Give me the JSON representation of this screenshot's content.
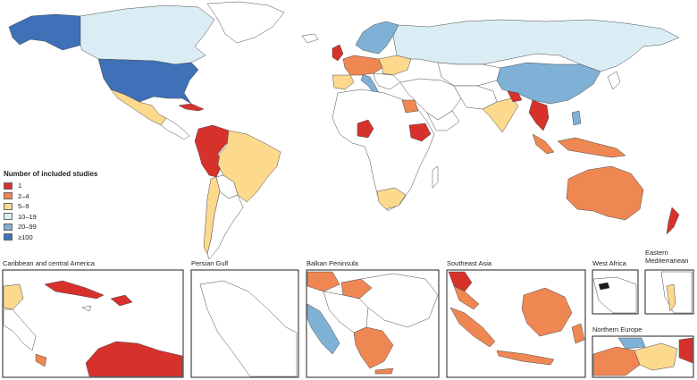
{
  "legend": {
    "title": "Number of included studies",
    "items": [
      {
        "label": "1",
        "color": "#d7312c"
      },
      {
        "label": "2–4",
        "color": "#ef8753"
      },
      {
        "label": "5–9",
        "color": "#fdd98e"
      },
      {
        "label": "10–19",
        "color": "#dbedf4"
      },
      {
        "label": "20–99",
        "color": "#7fb1d7"
      },
      {
        "label": "≥100",
        "color": "#3e71b7"
      }
    ]
  },
  "insets": [
    {
      "title": "Caribbean and central America"
    },
    {
      "title": "Persian Gulf"
    },
    {
      "title": "Balkan Peninsula"
    },
    {
      "title": "Southeast Asia"
    },
    {
      "title": "West Africa"
    },
    {
      "title": "Eastern Mediterranean"
    },
    {
      "title": "Northern Europe"
    }
  ],
  "colors": {
    "no_data": "#ffffff",
    "border": "#4a4a4a",
    "frame": "#222222"
  }
}
